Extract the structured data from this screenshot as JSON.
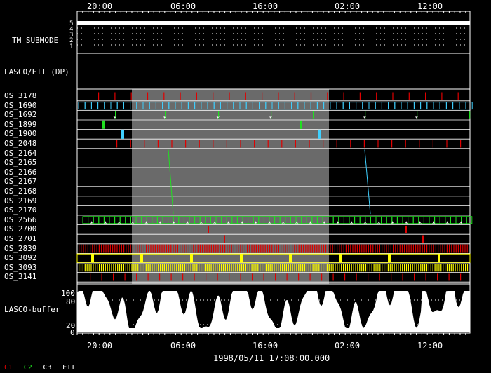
{
  "top_axis": {
    "ticks": [
      "20:00",
      "06:00",
      "16:00",
      "02:00",
      "12:00"
    ]
  },
  "bottom_axis": {
    "ticks": [
      "20:00",
      "06:00",
      "16:00",
      "02:00",
      "12:00"
    ]
  },
  "submode": {
    "label": "TM SUBMODE",
    "levels": [
      "5",
      "4",
      "3",
      "2",
      "1"
    ]
  },
  "lasco_eit": {
    "label": "LASCO/EIT (DP)"
  },
  "os_rows": [
    {
      "label": "OS_3178",
      "color": "#e00000"
    },
    {
      "label": "OS_1690",
      "color": "#3fd0ff"
    },
    {
      "label": "OS_1692",
      "color": "#20e020"
    },
    {
      "label": "OS_1899",
      "color": "#20e020"
    },
    {
      "label": "OS_1900",
      "color": "#3fd0ff"
    },
    {
      "label": "OS_2048",
      "color": "#e00000"
    },
    {
      "label": "OS_2164",
      "color": "#20e020"
    },
    {
      "label": "OS_2165",
      "color": "#20e020"
    },
    {
      "label": "OS_2166",
      "color": "#20e020"
    },
    {
      "label": "OS_2167",
      "color": "#20e020"
    },
    {
      "label": "OS_2168",
      "color": "#20e020"
    },
    {
      "label": "OS_2169",
      "color": "#3fd0ff"
    },
    {
      "label": "OS_2170",
      "color": "#3fd0ff"
    },
    {
      "label": "OS_2566",
      "color": "#20e020"
    },
    {
      "label": "OS_2700",
      "color": "#e00000"
    },
    {
      "label": "OS_2701",
      "color": "#e00000"
    },
    {
      "label": "OS_2839",
      "color": "#e00000"
    },
    {
      "label": "OS_3092",
      "color": "#ffff00"
    },
    {
      "label": "OS_3093",
      "color": "#ffff00"
    },
    {
      "label": "OS_3141",
      "color": "#e00000"
    }
  ],
  "buffer": {
    "label": "LASCO-buffer",
    "ticks": [
      "100",
      "80",
      "20",
      "0"
    ]
  },
  "timestamp": "1998/05/11 17:08:00.000",
  "legend": [
    {
      "label": "C1",
      "color": "#e00000"
    },
    {
      "label": "C2",
      "color": "#20e020"
    },
    {
      "label": "C3",
      "color": "#ffffff"
    },
    {
      "label": "EIT",
      "color": "#ffffff"
    }
  ],
  "colors": {
    "highlight": "#6a6a6a",
    "background": "#000000",
    "grid": "#ffffff"
  }
}
